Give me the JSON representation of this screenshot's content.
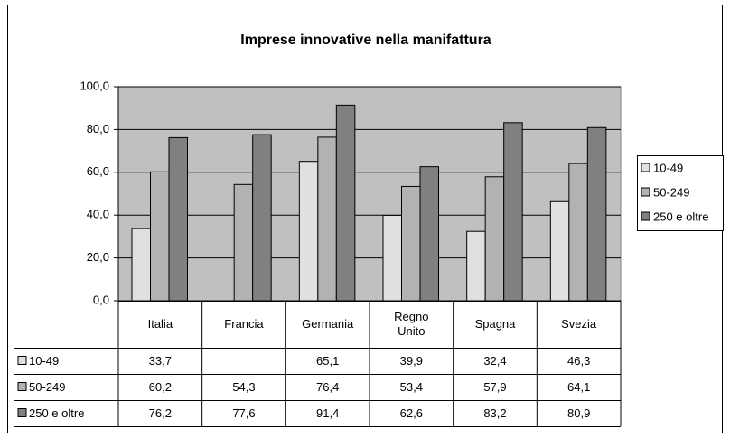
{
  "chart_data": {
    "type": "bar",
    "title": "Imprese innovative nella manifattura",
    "categories": [
      "Italia",
      "Francia",
      "Germania",
      "Regno Unito",
      "Spagna",
      "Svezia"
    ],
    "series": [
      {
        "name": "10-49",
        "color": "#e0e0e0",
        "values": [
          33.7,
          null,
          65.1,
          39.9,
          32.4,
          46.3
        ],
        "value_labels": [
          "33,7",
          null,
          "65,1",
          "39,9",
          "32,4",
          "46,3"
        ]
      },
      {
        "name": "50-249",
        "color": "#b2b2b2",
        "values": [
          60.2,
          54.3,
          76.4,
          53.4,
          57.9,
          64.1
        ],
        "value_labels": [
          "60,2",
          "54,3",
          "76,4",
          "53,4",
          "57,9",
          "64,1"
        ]
      },
      {
        "name": "250 e oltre",
        "color": "#808080",
        "values": [
          76.2,
          77.6,
          91.4,
          62.6,
          83.2,
          80.9
        ],
        "value_labels": [
          "76,2",
          "77,6",
          "91,4",
          "62,6",
          "83,2",
          "80,9"
        ]
      }
    ],
    "ylim": [
      0,
      100
    ],
    "yticks": [
      {
        "value": 0,
        "label": "0,0"
      },
      {
        "value": 20,
        "label": "20,0"
      },
      {
        "value": 40,
        "label": "40,0"
      },
      {
        "value": 60,
        "label": "60,0"
      },
      {
        "value": 80,
        "label": "80,0"
      },
      {
        "value": 100,
        "label": "100,0"
      }
    ],
    "grid": true,
    "legend": "right",
    "plot_background": "#c0c0c0"
  }
}
